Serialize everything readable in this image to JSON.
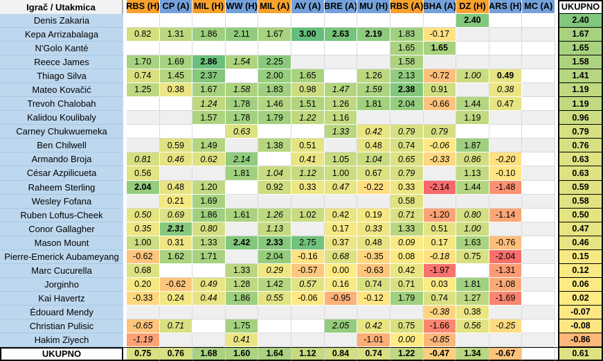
{
  "colors": {
    "orange": "#F8A12E",
    "blue": "#74A1DB",
    "name_bg": "#BDD7EE",
    "corner_bg": "#F2F2F2",
    "empty_band": "#EFEFEF",
    "grid_line": "#D9D9D9",
    "scale_min_color": "#F8696B",
    "scale_mid_color": "#FFEB84",
    "scale_max_color": "#63BE7B",
    "scale_domain": [
      -2.14,
      0,
      3.0
    ]
  },
  "header": {
    "corner": "Igrač / Utakmica",
    "total_label": "UKUPNO",
    "columns": [
      {
        "label": "RBS (H)",
        "color": "orange"
      },
      {
        "label": "CP (A)",
        "color": "blue"
      },
      {
        "label": "MIL (H)",
        "color": "orange"
      },
      {
        "label": "WW (H)",
        "color": "blue"
      },
      {
        "label": "MIL (A)",
        "color": "orange"
      },
      {
        "label": "AV (A)",
        "color": "blue"
      },
      {
        "label": "BRE (A)",
        "color": "blue"
      },
      {
        "label": "MU (H)",
        "color": "blue"
      },
      {
        "label": "RBS (A)",
        "color": "orange"
      },
      {
        "label": "BHA (A)",
        "color": "blue"
      },
      {
        "label": "DZ (H)",
        "color": "orange"
      },
      {
        "label": "ARS (H)",
        "color": "blue"
      },
      {
        "label": "MC (A)",
        "color": "blue"
      }
    ]
  },
  "rows": [
    {
      "player": "Denis Zakaria",
      "cells": [
        null,
        null,
        null,
        null,
        null,
        null,
        null,
        null,
        null,
        null,
        [
          "2.40",
          "b"
        ],
        null,
        null
      ],
      "total": "2.40"
    },
    {
      "player": "Kepa Arrizabalaga",
      "cells": [
        "0.82",
        "1.31",
        "1.86",
        "2.11",
        "1.67",
        [
          "3.00",
          "b"
        ],
        [
          "2.63",
          "b"
        ],
        [
          "2.19",
          "b"
        ],
        "1.83",
        "-0.17",
        null,
        null,
        null
      ],
      "total": "1.67"
    },
    {
      "player": "N'Golo Kanté",
      "cells": [
        null,
        null,
        null,
        null,
        null,
        null,
        null,
        null,
        "1.65",
        [
          "1.65",
          "b"
        ],
        null,
        null,
        null
      ],
      "total": "1.65"
    },
    {
      "player": "Reece James",
      "cells": [
        "1.70",
        "1.69",
        [
          "2.86",
          "b"
        ],
        [
          "1.54",
          "i"
        ],
        "2.25",
        null,
        null,
        null,
        "1.58",
        null,
        null,
        null,
        null
      ],
      "total": "1.58"
    },
    {
      "player": "Thiago Silva",
      "cells": [
        "0.74",
        "1.45",
        "2.37",
        null,
        "2.00",
        "1.65",
        null,
        "1.26",
        "2.13",
        "-0.72",
        [
          "1.00",
          "i"
        ],
        [
          "0.49",
          "b"
        ],
        null
      ],
      "total": "1.41"
    },
    {
      "player": "Mateo Kovačić",
      "cells": [
        "1.25",
        "0.38",
        "1.67",
        [
          "1.58",
          "i"
        ],
        "1.83",
        "0.98",
        [
          "1.47",
          "i"
        ],
        [
          "1.59",
          "i"
        ],
        [
          "2.38",
          "b"
        ],
        "0.91",
        null,
        [
          "0.38",
          "i"
        ],
        null
      ],
      "total": "1.19"
    },
    {
      "player": "Trevoh Chalobah",
      "cells": [
        null,
        null,
        [
          "1.24",
          "i"
        ],
        "1.78",
        "1.46",
        "1.51",
        "1.26",
        "1.81",
        "2.04",
        "-0.66",
        "1.44",
        "0.47",
        null
      ],
      "total": "1.19"
    },
    {
      "player": "Kalidou Koulibaly",
      "cells": [
        null,
        null,
        "1.57",
        "1.78",
        "1.79",
        [
          "1.22",
          "i"
        ],
        "1.16",
        null,
        null,
        null,
        "1.19",
        null,
        null
      ],
      "total": "0.96"
    },
    {
      "player": "Carney Chukwuemeka",
      "cells": [
        null,
        null,
        null,
        [
          "0.63",
          "i"
        ],
        null,
        null,
        [
          "1.33",
          "i"
        ],
        [
          "0.42",
          "i"
        ],
        [
          "0.79",
          "i"
        ],
        [
          "0.79",
          "i"
        ],
        null,
        null,
        null
      ],
      "total": "0.79"
    },
    {
      "player": "Ben Chilwell",
      "cells": [
        null,
        "0.59",
        "1.49",
        null,
        "1.38",
        "0.51",
        null,
        "0.48",
        "0.74",
        [
          "-0.06",
          "i"
        ],
        "1.87",
        null,
        null
      ],
      "total": "0.76"
    },
    {
      "player": "Armando Broja",
      "cells": [
        [
          "0.81",
          "i"
        ],
        [
          "0.46",
          "i"
        ],
        [
          "0.62",
          "i"
        ],
        [
          "2.14",
          "i"
        ],
        null,
        [
          "0.41",
          "i"
        ],
        "1.05",
        [
          "1.04",
          "i"
        ],
        [
          "0.65",
          "i"
        ],
        [
          "-0.33",
          "i"
        ],
        [
          "0.86",
          "i"
        ],
        [
          "-0.20",
          "i"
        ],
        null
      ],
      "total": "0.63"
    },
    {
      "player": "César Azpilicueta",
      "cells": [
        "0.56",
        null,
        null,
        "1.81",
        [
          "1.04",
          "i"
        ],
        [
          "1.12",
          "i"
        ],
        "1.00",
        "0.67",
        [
          "0.79",
          "i"
        ],
        null,
        "1.13",
        "-0.10",
        null
      ],
      "total": "0.63"
    },
    {
      "player": "Raheem Sterling",
      "cells": [
        [
          "2.04",
          "b"
        ],
        "0.48",
        "1.20",
        null,
        "0.92",
        "0.33",
        [
          "0.47",
          "i"
        ],
        "-0.22",
        "0.33",
        "-2.14",
        "1.44",
        "-1.48",
        null
      ],
      "total": "0.59"
    },
    {
      "player": "Wesley Fofana",
      "cells": [
        null,
        "0.21",
        "1.69",
        null,
        null,
        null,
        null,
        null,
        "0.58",
        null,
        null,
        null,
        null
      ],
      "total": "0.58"
    },
    {
      "player": "Ruben Loftus-Cheek",
      "cells": [
        [
          "0.50",
          "i"
        ],
        [
          "0.69",
          "i"
        ],
        "1.86",
        "1.61",
        [
          "1.26",
          "i"
        ],
        "1.02",
        "0.42",
        "0.19",
        [
          "0.71",
          "i"
        ],
        "-1.20",
        [
          "0.80",
          "i"
        ],
        "-1.14",
        null
      ],
      "total": "0.50"
    },
    {
      "player": "Conor Gallagher",
      "cells": [
        [
          "0.35",
          "i"
        ],
        [
          "2.31",
          "bi"
        ],
        [
          "0.80",
          "i"
        ],
        null,
        [
          "1.13",
          "i"
        ],
        null,
        "0.17",
        [
          "0.33",
          "i"
        ],
        "1.33",
        "0.51",
        [
          "1.00",
          "i"
        ],
        null,
        null
      ],
      "total": "0.47"
    },
    {
      "player": "Mason Mount",
      "cells": [
        "1.00",
        "0.31",
        "1.33",
        [
          "2.42",
          "b"
        ],
        [
          "2.33",
          "b"
        ],
        "2.75",
        "0.37",
        "0.48",
        [
          "0.09",
          "i"
        ],
        "0.17",
        "1.63",
        "-0.76",
        null
      ],
      "total": "0.46"
    },
    {
      "player": "Pierre-Emerick Aubameyang",
      "cells": [
        "-0.62",
        "1.62",
        "1.71",
        null,
        "2.04",
        "-0.16",
        [
          "0.68",
          "i"
        ],
        "-0.35",
        "0.08",
        [
          "-0.18",
          "i"
        ],
        "0.75",
        "-2.04",
        null
      ],
      "total": "0.15"
    },
    {
      "player": "Marc Cucurella",
      "cells": [
        "0.68",
        null,
        null,
        "1.33",
        [
          "0.29",
          "i"
        ],
        "-0.57",
        "0.00",
        "-0.63",
        "0.42",
        "-1.97",
        null,
        "-1.31",
        null
      ],
      "total": "0.12"
    },
    {
      "player": "Jorginho",
      "cells": [
        "0.20",
        "-0.62",
        [
          "0.49",
          "i"
        ],
        "1.28",
        "1.42",
        [
          "0.57",
          "i"
        ],
        "0.16",
        "0.74",
        "0.71",
        "0.03",
        "1.81",
        "-1.08",
        null
      ],
      "total": "0.06"
    },
    {
      "player": "Kai Havertz",
      "cells": [
        "-0.33",
        "0.24",
        [
          "0.44",
          "i"
        ],
        "1.86",
        [
          "0.55",
          "i"
        ],
        "-0.06",
        "-0.95",
        "-0.12",
        "1.79",
        "0.74",
        "1.27",
        "-1.69",
        null
      ],
      "total": "0.02"
    },
    {
      "player": "Édouard Mendy",
      "cells": [
        null,
        null,
        null,
        null,
        null,
        null,
        null,
        null,
        null,
        [
          "-0.38",
          "i"
        ],
        "0.38",
        null,
        null
      ],
      "total": "-0.07"
    },
    {
      "player": "Christian Pulisic",
      "cells": [
        [
          "-0.65",
          "i"
        ],
        [
          "0.71",
          "i"
        ],
        null,
        "1.75",
        null,
        null,
        [
          "2.05",
          "i"
        ],
        [
          "0.42",
          "i"
        ],
        "0.75",
        "-1.66",
        [
          "0.56",
          "i"
        ],
        [
          "-0.25",
          "i"
        ],
        null
      ],
      "total": "-0.08"
    },
    {
      "player": "Hakim Ziyech",
      "cells": [
        [
          "-1.19",
          "i"
        ],
        null,
        null,
        [
          "0.41",
          "i"
        ],
        null,
        null,
        null,
        "-1.01",
        [
          "0.00",
          "i"
        ],
        [
          "-0.85",
          "i"
        ],
        null,
        null,
        null
      ],
      "total": "-0.86"
    }
  ],
  "totals_row": {
    "label": "UKUPNO",
    "cells": [
      "0.75",
      "0.76",
      "1.68",
      "1.60",
      "1.64",
      "1.12",
      "0.84",
      "0.74",
      "1.22",
      "-0.47",
      "1.34",
      "-0.67",
      null
    ],
    "total": "0.61"
  }
}
